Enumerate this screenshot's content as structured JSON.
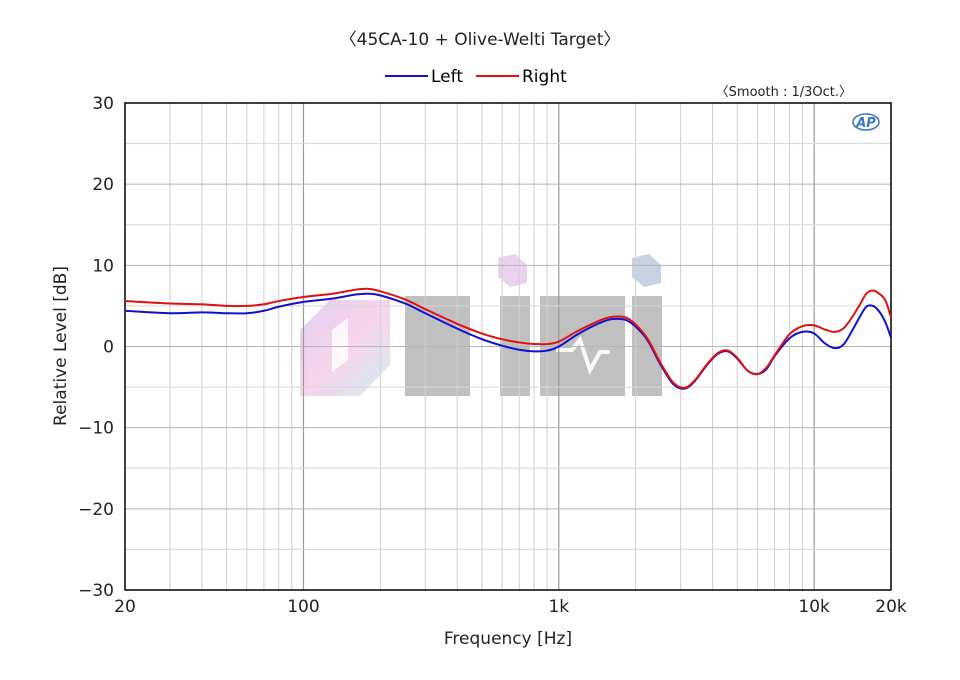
{
  "chart_data": {
    "type": "line",
    "title": "〈45CA-10 + Olive-Welti Target〉",
    "smoothing_note": "〈Smooth : 1/3Oct.〉",
    "xlabel": "Frequency [Hz]",
    "ylabel": "Relative Level [dB]",
    "xscale": "log",
    "xlim": [
      20,
      20000
    ],
    "ylim": [
      -30,
      30
    ],
    "grid": true,
    "legend_placement": "top-center",
    "x_tick_values": [
      20,
      100,
      1000,
      10000,
      20000
    ],
    "x_tick_labels": [
      "20",
      "100",
      "1k",
      "10k",
      "20k"
    ],
    "y_ticks": [
      30,
      20,
      10,
      0,
      -10,
      -20,
      -30
    ],
    "y_tick_labels": [
      "30",
      "20",
      "10",
      "0",
      "−10",
      "−20",
      "−30"
    ],
    "series": [
      {
        "name": "Left",
        "color": "#1010d0",
        "x": [
          20,
          30,
          40,
          50,
          60,
          70,
          80,
          100,
          130,
          160,
          180,
          200,
          250,
          300,
          400,
          500,
          600,
          700,
          800,
          900,
          1000,
          1200,
          1500,
          1700,
          1900,
          2200,
          2500,
          2800,
          3100,
          3400,
          3800,
          4200,
          4600,
          5000,
          5500,
          6000,
          6500,
          7000,
          8000,
          9000,
          10000,
          11000,
          12000,
          13000,
          14000,
          15000,
          16000,
          17000,
          18000,
          19000,
          20000
        ],
        "y": [
          4.4,
          4.1,
          4.2,
          4.1,
          4.1,
          4.4,
          4.9,
          5.5,
          5.9,
          6.4,
          6.5,
          6.3,
          5.3,
          4.1,
          2.2,
          0.9,
          0.1,
          -0.4,
          -0.6,
          -0.5,
          0.0,
          1.6,
          3.1,
          3.4,
          3.0,
          1.0,
          -2.2,
          -4.6,
          -5.2,
          -4.3,
          -2.3,
          -0.9,
          -0.6,
          -1.5,
          -3.0,
          -3.4,
          -2.8,
          -1.2,
          1.0,
          1.8,
          1.6,
          0.4,
          -0.2,
          0.2,
          1.8,
          3.5,
          4.9,
          5.0,
          4.3,
          3.0,
          1.1
        ]
      },
      {
        "name": "Right",
        "color": "#e01010",
        "x": [
          20,
          30,
          40,
          50,
          60,
          70,
          80,
          100,
          130,
          160,
          180,
          200,
          250,
          300,
          400,
          500,
          600,
          700,
          800,
          900,
          1000,
          1200,
          1500,
          1700,
          1900,
          2200,
          2500,
          2800,
          3100,
          3400,
          3800,
          4200,
          4600,
          5000,
          5500,
          6000,
          6500,
          7000,
          8000,
          9000,
          10000,
          11000,
          12000,
          13000,
          14000,
          15000,
          16000,
          17000,
          18000,
          19000,
          20000
        ],
        "y": [
          5.6,
          5.3,
          5.2,
          5.0,
          5.0,
          5.2,
          5.6,
          6.1,
          6.5,
          7.0,
          7.1,
          6.8,
          5.8,
          4.6,
          2.8,
          1.6,
          0.9,
          0.5,
          0.3,
          0.3,
          0.6,
          2.0,
          3.4,
          3.7,
          3.3,
          1.2,
          -2.0,
          -4.4,
          -5.1,
          -4.2,
          -2.2,
          -0.8,
          -0.5,
          -1.4,
          -3.0,
          -3.4,
          -2.6,
          -1.1,
          1.5,
          2.5,
          2.6,
          2.1,
          1.8,
          2.2,
          3.5,
          5.0,
          6.5,
          6.9,
          6.5,
          5.7,
          3.6
        ]
      }
    ]
  }
}
